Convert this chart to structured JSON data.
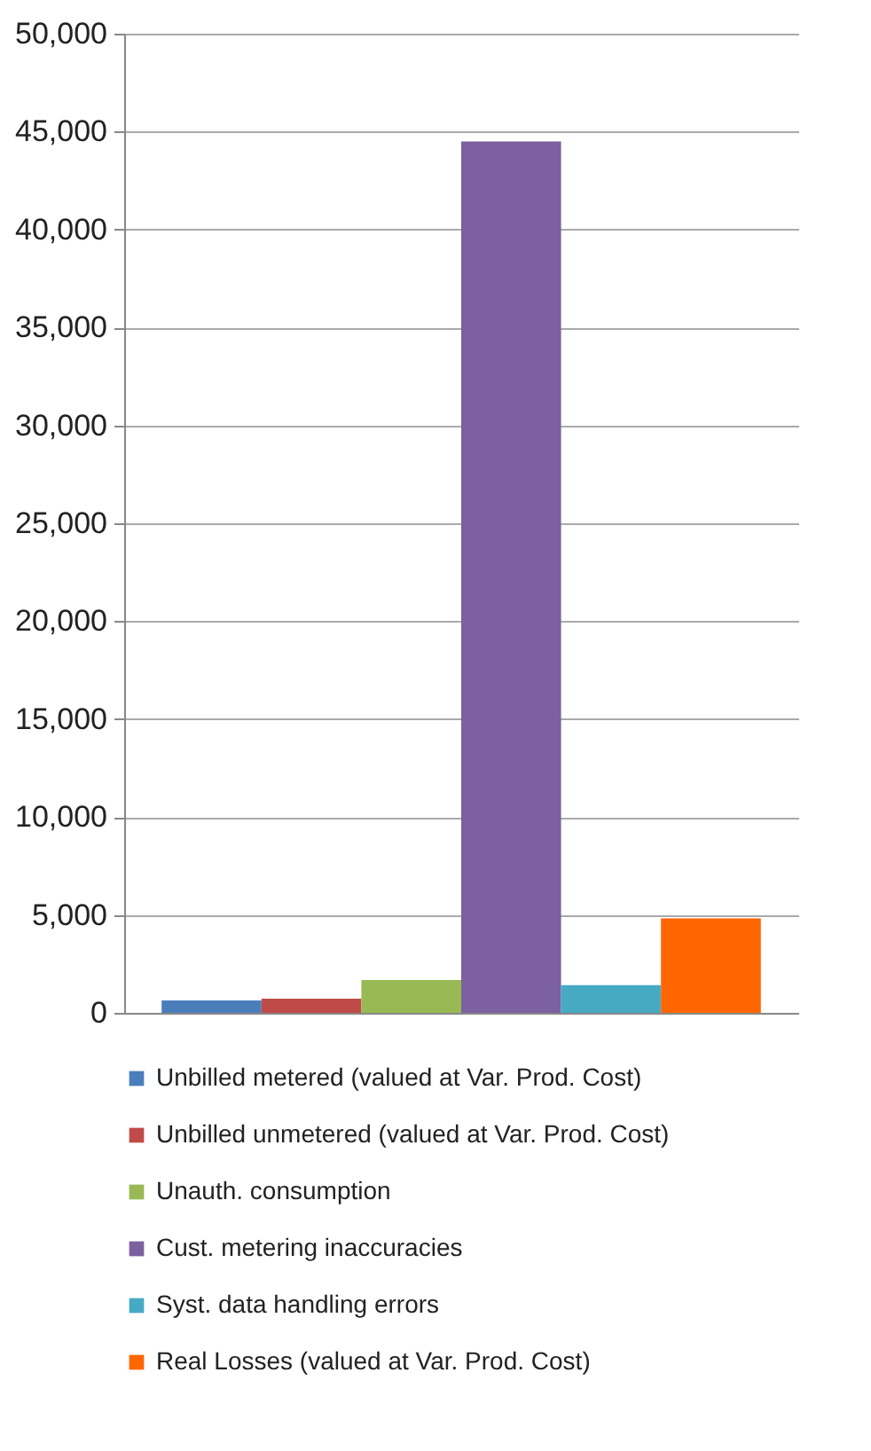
{
  "chart_data": {
    "type": "bar",
    "categories": [
      null
    ],
    "series": [
      {
        "name": "Unbilled metered (valued at Var. Prod. Cost)",
        "color": "#4a7ebb",
        "values": [
          630
        ]
      },
      {
        "name": "Unbilled unmetered (valued at Var. Prod. Cost)",
        "color": "#be4b48",
        "values": [
          720
        ]
      },
      {
        "name": "Unauth. consumption",
        "color": "#98b954",
        "values": [
          1680
        ]
      },
      {
        "name": "Cust. metering inaccuracies",
        "color": "#7d60a0",
        "values": [
          44500
        ]
      },
      {
        "name": "Syst. data handling errors",
        "color": "#46aac5",
        "values": [
          1410
        ]
      },
      {
        "name": "Real Losses (valued at Var. Prod. Cost)",
        "color": "#ff6600",
        "values": [
          4820
        ]
      }
    ],
    "ylim": [
      0,
      50000
    ],
    "yticks": [
      {
        "value": 0,
        "label": "0"
      },
      {
        "value": 5000,
        "label": "5,000"
      },
      {
        "value": 10000,
        "label": "10,000"
      },
      {
        "value": 15000,
        "label": "15,000"
      },
      {
        "value": 20000,
        "label": "20,000"
      },
      {
        "value": 25000,
        "label": "25,000"
      },
      {
        "value": 30000,
        "label": "30,000"
      },
      {
        "value": 35000,
        "label": "35,000"
      },
      {
        "value": 40000,
        "label": "40,000"
      },
      {
        "value": 45000,
        "label": "45,000"
      },
      {
        "value": 50000,
        "label": "50,000"
      }
    ],
    "grid": "y",
    "legend": "bottom",
    "tick_labels": "y"
  }
}
